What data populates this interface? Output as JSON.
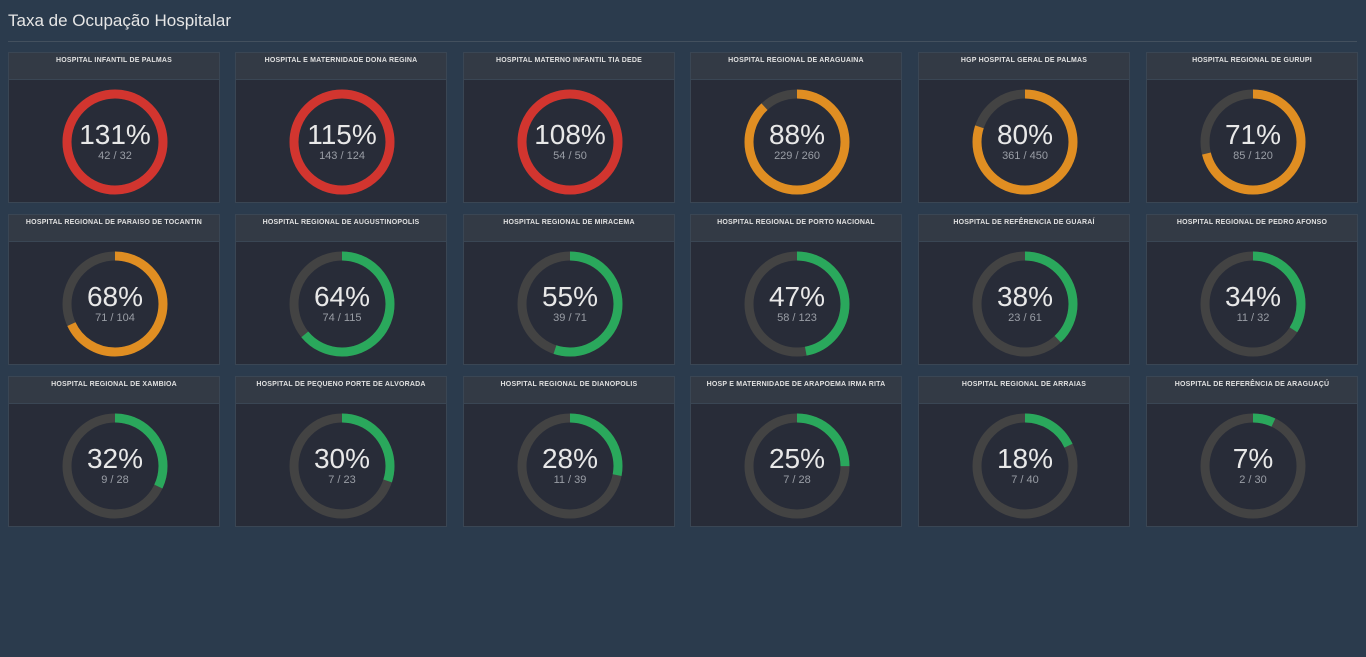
{
  "page": {
    "title": "Taxa de Ocupação Hospitalar"
  },
  "colors": {
    "critical": "#d2352f",
    "warning": "#e08e22",
    "ok": "#2aa85c",
    "track": "#434343"
  },
  "chart_data": {
    "type": "gauge",
    "title": "Taxa de Ocupação Hospitalar",
    "items": [
      {
        "name": "HOSPITAL INFANTIL DE PALMAS",
        "percent": "131%",
        "ratio": "42 / 32",
        "value": 131,
        "status": "critical"
      },
      {
        "name": "HOSPITAL E MATERNIDADE DONA REGINA",
        "percent": "115%",
        "ratio": "143 / 124",
        "value": 115,
        "status": "critical"
      },
      {
        "name": "HOSPITAL MATERNO INFANTIL TIA DEDE",
        "percent": "108%",
        "ratio": "54 / 50",
        "value": 108,
        "status": "critical"
      },
      {
        "name": "HOSPITAL REGIONAL DE ARAGUAINA",
        "percent": "88%",
        "ratio": "229 / 260",
        "value": 88,
        "status": "warning"
      },
      {
        "name": "HGP HOSPITAL GERAL DE PALMAS",
        "percent": "80%",
        "ratio": "361 / 450",
        "value": 80,
        "status": "warning"
      },
      {
        "name": "HOSPITAL REGIONAL DE GURUPI",
        "percent": "71%",
        "ratio": "85 / 120",
        "value": 71,
        "status": "warning"
      },
      {
        "name": "HOSPITAL REGIONAL DE PARAISO DE TOCANTIN",
        "percent": "68%",
        "ratio": "71 / 104",
        "value": 68,
        "status": "warning"
      },
      {
        "name": "HOSPITAL REGIONAL DE AUGUSTINOPOLIS",
        "percent": "64%",
        "ratio": "74 / 115",
        "value": 64,
        "status": "ok"
      },
      {
        "name": "HOSPITAL REGIONAL DE MIRACEMA",
        "percent": "55%",
        "ratio": "39 / 71",
        "value": 55,
        "status": "ok"
      },
      {
        "name": "HOSPITAL REGIONAL DE PORTO NACIONAL",
        "percent": "47%",
        "ratio": "58 / 123",
        "value": 47,
        "status": "ok"
      },
      {
        "name": "HOSPITAL DE REFÊRENCIA DE GUARAÍ",
        "percent": "38%",
        "ratio": "23 / 61",
        "value": 38,
        "status": "ok"
      },
      {
        "name": "HOSPITAL REGIONAL DE PEDRO AFONSO",
        "percent": "34%",
        "ratio": "11 / 32",
        "value": 34,
        "status": "ok"
      },
      {
        "name": "HOSPITAL REGIONAL DE XAMBIOA",
        "percent": "32%",
        "ratio": "9 / 28",
        "value": 32,
        "status": "ok"
      },
      {
        "name": "HOSPITAL DE PEQUENO PORTE DE ALVORADA",
        "percent": "30%",
        "ratio": "7 / 23",
        "value": 30,
        "status": "ok"
      },
      {
        "name": "HOSPITAL REGIONAL DE DIANOPOLIS",
        "percent": "28%",
        "ratio": "11 / 39",
        "value": 28,
        "status": "ok"
      },
      {
        "name": "HOSP E MATERNIDADE DE ARAPOEMA IRMA RITA",
        "percent": "25%",
        "ratio": "7 / 28",
        "value": 25,
        "status": "ok"
      },
      {
        "name": "HOSPITAL REGIONAL DE ARRAIAS",
        "percent": "18%",
        "ratio": "7 / 40",
        "value": 18,
        "status": "ok"
      },
      {
        "name": "HOSPITAL DE REFERÊNCIA DE ARAGUAÇÚ",
        "percent": "7%",
        "ratio": "2 / 30",
        "value": 7,
        "status": "ok"
      }
    ]
  }
}
